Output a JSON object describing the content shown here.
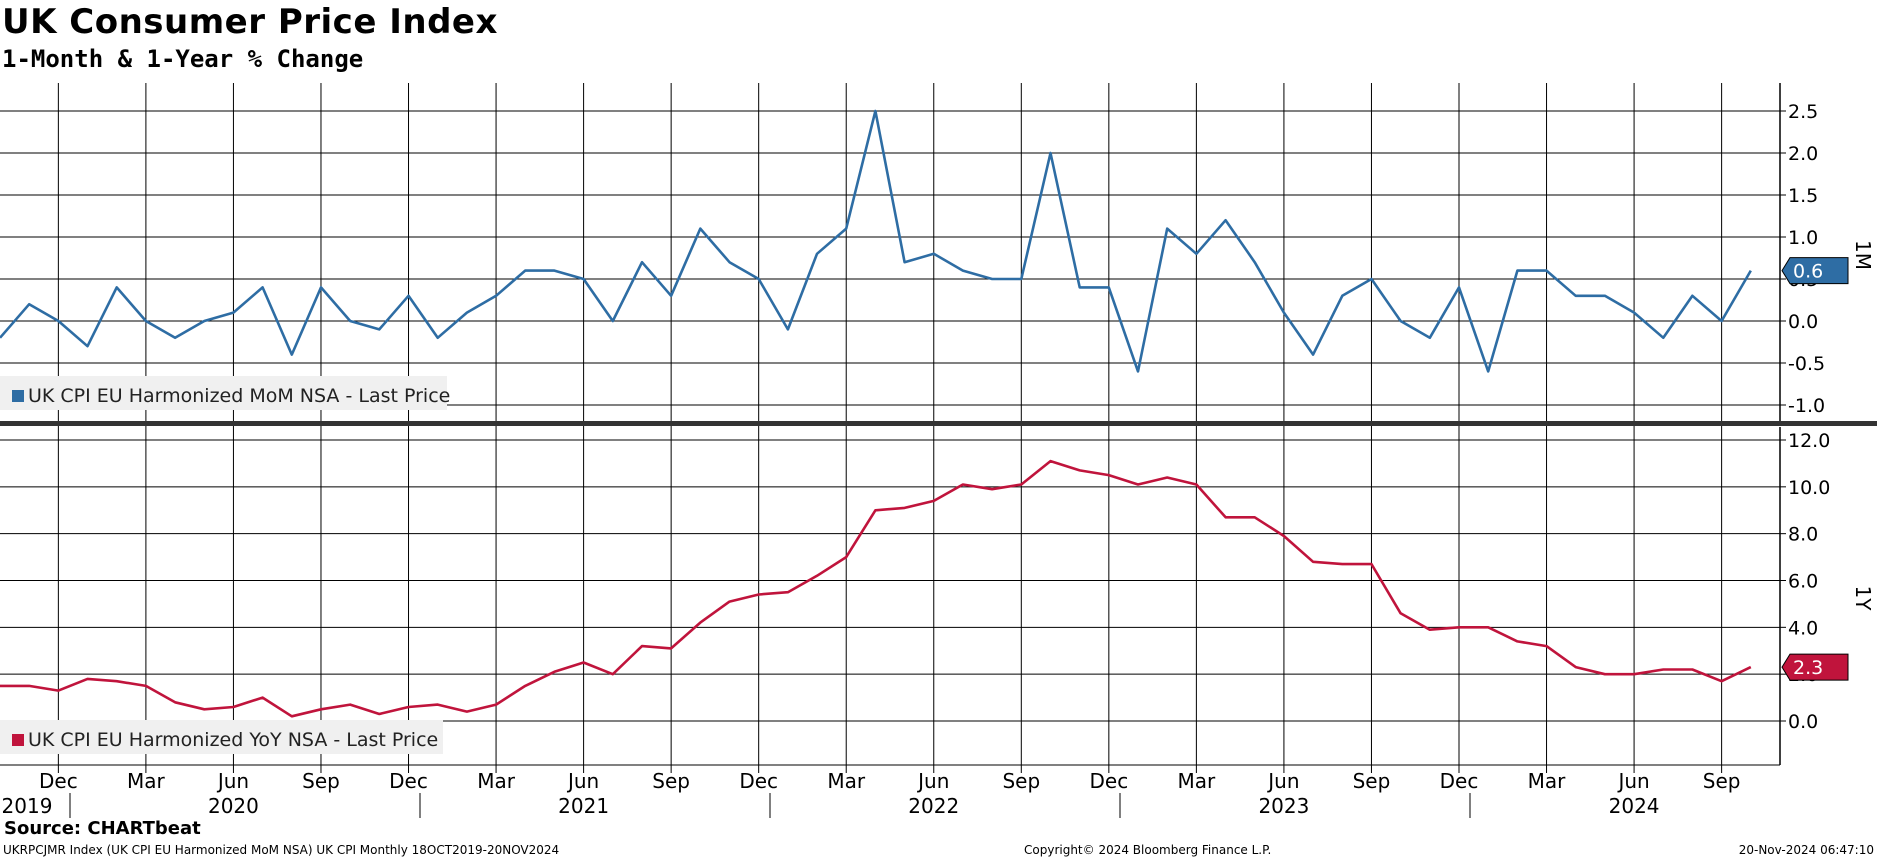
{
  "title": "UK Consumer Price Index",
  "subtitle": "1-Month & 1-Year % Change",
  "source": "Source: CHARTbeat",
  "footer": {
    "left": "UKRPCJMR Index (UK CPI EU Harmonized MoM NSA) UK CPI  Monthly 18OCT2019-20NOV2024",
    "center": "Copyright© 2024 Bloomberg Finance L.P.",
    "right": "20-Nov-2024 06:47:10"
  },
  "chart_data": [
    {
      "type": "line",
      "panel_label": "1M",
      "ylim": [
        -1.0,
        2.8
      ],
      "yticks": [
        2.5,
        2.0,
        1.5,
        1.0,
        0.5,
        0.0,
        -0.5,
        -1.0
      ],
      "ytick_labels": [
        "2.5",
        "2.0",
        "1.5",
        "1.0",
        "0.5",
        "0.0",
        "-0.5",
        "-1.0"
      ],
      "grid": true,
      "legend_position": "bottom-left",
      "series": [
        {
          "name": "UK CPI EU Harmonized MoM NSA - Last Price",
          "color": "#2E6DA4",
          "last_value_label": "0.6",
          "x": [
            "2019-10",
            "2019-11",
            "2019-12",
            "2020-01",
            "2020-02",
            "2020-03",
            "2020-04",
            "2020-05",
            "2020-06",
            "2020-07",
            "2020-08",
            "2020-09",
            "2020-10",
            "2020-11",
            "2020-12",
            "2021-01",
            "2021-02",
            "2021-03",
            "2021-04",
            "2021-05",
            "2021-06",
            "2021-07",
            "2021-08",
            "2021-09",
            "2021-10",
            "2021-11",
            "2021-12",
            "2022-01",
            "2022-02",
            "2022-03",
            "2022-04",
            "2022-05",
            "2022-06",
            "2022-07",
            "2022-08",
            "2022-09",
            "2022-10",
            "2022-11",
            "2022-12",
            "2023-01",
            "2023-02",
            "2023-03",
            "2023-04",
            "2023-05",
            "2023-06",
            "2023-07",
            "2023-08",
            "2023-09",
            "2023-10",
            "2023-11",
            "2023-12",
            "2024-01",
            "2024-02",
            "2024-03",
            "2024-04",
            "2024-05",
            "2024-06",
            "2024-07",
            "2024-08",
            "2024-09",
            "2024-10"
          ],
          "values": [
            -0.2,
            0.2,
            0.0,
            -0.3,
            0.4,
            0.0,
            -0.2,
            0.0,
            0.1,
            0.4,
            -0.4,
            0.4,
            0.0,
            -0.1,
            0.3,
            -0.2,
            0.1,
            0.3,
            0.6,
            0.6,
            0.5,
            0.0,
            0.7,
            0.3,
            1.1,
            0.7,
            0.5,
            -0.1,
            0.8,
            1.1,
            2.5,
            0.7,
            0.8,
            0.6,
            0.5,
            0.5,
            2.0,
            0.4,
            0.4,
            -0.6,
            1.1,
            0.8,
            1.2,
            0.7,
            0.1,
            -0.4,
            0.3,
            0.5,
            0.0,
            -0.2,
            0.4,
            -0.6,
            0.6,
            0.6,
            0.3,
            0.3,
            0.1,
            -0.2,
            0.3,
            0.0,
            0.6
          ]
        }
      ]
    },
    {
      "type": "line",
      "panel_label": "1Y",
      "ylim": [
        -1.8,
        12.8
      ],
      "yticks": [
        12.0,
        10.0,
        8.0,
        6.0,
        4.0,
        2.0,
        0.0
      ],
      "ytick_labels": [
        "12.0",
        "10.0",
        "8.0",
        "6.0",
        "4.0",
        "2.0",
        "0.0"
      ],
      "grid": true,
      "legend_position": "bottom-left",
      "series": [
        {
          "name": "UK CPI EU Harmonized YoY NSA - Last Price",
          "color": "#C0143C",
          "last_value_label": "2.3",
          "x": [
            "2019-10",
            "2019-11",
            "2019-12",
            "2020-01",
            "2020-02",
            "2020-03",
            "2020-04",
            "2020-05",
            "2020-06",
            "2020-07",
            "2020-08",
            "2020-09",
            "2020-10",
            "2020-11",
            "2020-12",
            "2021-01",
            "2021-02",
            "2021-03",
            "2021-04",
            "2021-05",
            "2021-06",
            "2021-07",
            "2021-08",
            "2021-09",
            "2021-10",
            "2021-11",
            "2021-12",
            "2022-01",
            "2022-02",
            "2022-03",
            "2022-04",
            "2022-05",
            "2022-06",
            "2022-07",
            "2022-08",
            "2022-09",
            "2022-10",
            "2022-11",
            "2022-12",
            "2023-01",
            "2023-02",
            "2023-03",
            "2023-04",
            "2023-05",
            "2023-06",
            "2023-07",
            "2023-08",
            "2023-09",
            "2023-10",
            "2023-11",
            "2023-12",
            "2024-01",
            "2024-02",
            "2024-03",
            "2024-04",
            "2024-05",
            "2024-06",
            "2024-07",
            "2024-08",
            "2024-09",
            "2024-10"
          ],
          "values": [
            1.5,
            1.5,
            1.3,
            1.8,
            1.7,
            1.5,
            0.8,
            0.5,
            0.6,
            1.0,
            0.2,
            0.5,
            0.7,
            0.3,
            0.6,
            0.7,
            0.4,
            0.7,
            1.5,
            2.1,
            2.5,
            2.0,
            3.2,
            3.1,
            4.2,
            5.1,
            5.4,
            5.5,
            6.2,
            7.0,
            9.0,
            9.1,
            9.4,
            10.1,
            9.9,
            10.1,
            11.1,
            10.7,
            10.5,
            10.1,
            10.4,
            10.1,
            8.7,
            8.7,
            7.9,
            6.8,
            6.7,
            6.7,
            4.6,
            3.9,
            4.0,
            4.0,
            3.4,
            3.2,
            2.3,
            2.0,
            2.0,
            2.2,
            2.2,
            1.7,
            2.3
          ]
        }
      ]
    }
  ],
  "x_axis": {
    "month_labels": [
      "Dec",
      "Mar",
      "Jun",
      "Sep",
      "Dec",
      "Mar",
      "Jun",
      "Sep",
      "Dec",
      "Mar",
      "Jun",
      "Sep",
      "Dec",
      "Mar",
      "Jun",
      "Sep",
      "Dec",
      "Mar",
      "Jun",
      "Sep"
    ],
    "month_label_dates": [
      "2019-12",
      "2020-03",
      "2020-06",
      "2020-09",
      "2020-12",
      "2021-03",
      "2021-06",
      "2021-09",
      "2021-12",
      "2022-03",
      "2022-06",
      "2022-09",
      "2022-12",
      "2023-03",
      "2023-06",
      "2023-09",
      "2023-12",
      "2024-03",
      "2024-06",
      "2024-09"
    ],
    "year_labels": [
      "2019",
      "2020",
      "2021",
      "2022",
      "2023",
      "2024"
    ],
    "year_label_dates": [
      "2019-10",
      "2020-06",
      "2021-06",
      "2022-06",
      "2023-06",
      "2024-06"
    ]
  }
}
